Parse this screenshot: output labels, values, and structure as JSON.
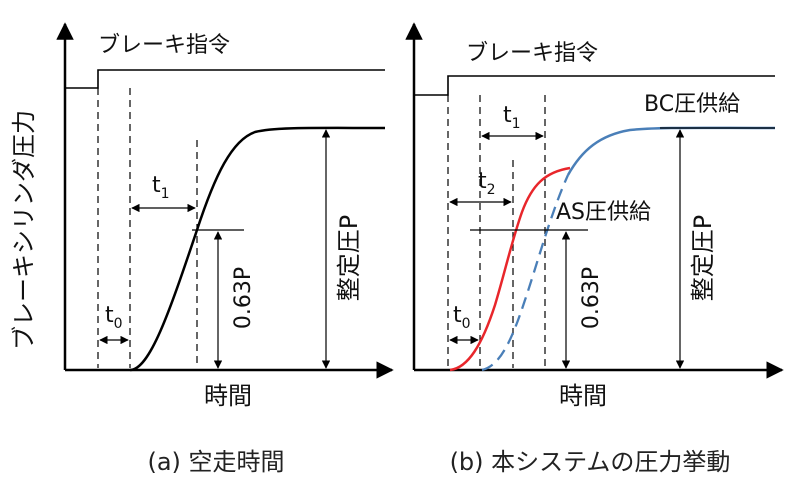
{
  "colors": {
    "as_curve": "#e8262b",
    "bc_curve": "#4a7fb8",
    "ink": "#000000"
  },
  "panel_a": {
    "y_axis_label": "ブレーキシリンダ圧力",
    "x_axis_label": "時間",
    "brake_command": "ブレーキ指令",
    "t0": "t",
    "t0_sub": "0",
    "t1": "t",
    "t1_sub": "1",
    "p063": "0.63P",
    "steady": "整定圧P",
    "caption": "(a) 空走時間"
  },
  "panel_b": {
    "x_axis_label": "時間",
    "brake_command": "ブレーキ指令",
    "bc_supply": "BC圧供給",
    "as_supply": "AS圧供給",
    "t0": "t",
    "t0_sub": "0",
    "t1": "t",
    "t1_sub": "1",
    "t2": "t",
    "t2_sub": "2",
    "p063": "0.63P",
    "steady": "整定圧P",
    "caption": "(b) 本システムの圧力挙動"
  }
}
